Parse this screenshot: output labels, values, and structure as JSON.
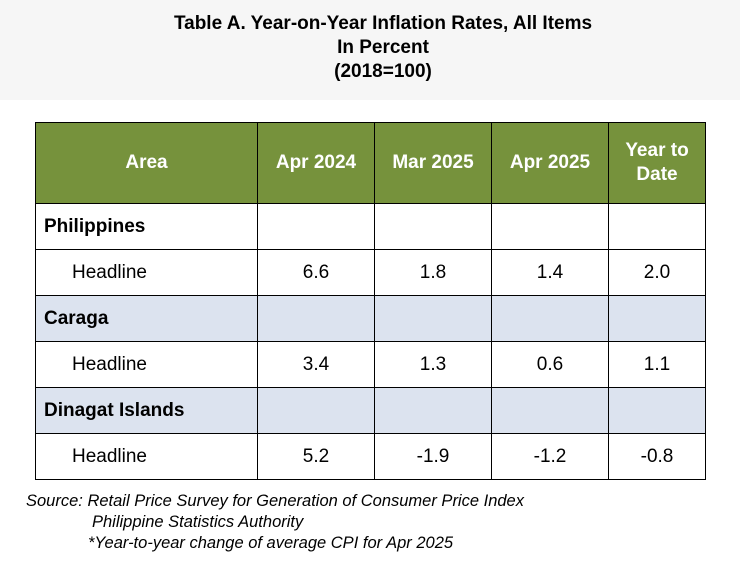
{
  "title": {
    "line1": "Table A. Year-on-Year Inflation Rates, All Items",
    "line2": "In Percent",
    "line3": "(2018=100)"
  },
  "table": {
    "headers": [
      "Area",
      "Apr 2024",
      "Mar 2025",
      "Apr 2025",
      "Year to Date"
    ],
    "rows": [
      {
        "type": "group",
        "label": "Philippines",
        "values": [
          "",
          "",
          "",
          ""
        ]
      },
      {
        "type": "item",
        "label": "Headline",
        "values": [
          "6.6",
          "1.8",
          "1.4",
          "2.0"
        ]
      },
      {
        "type": "group",
        "label": "Caraga",
        "values": [
          "",
          "",
          "",
          ""
        ]
      },
      {
        "type": "item",
        "label": "Headline",
        "values": [
          "3.4",
          "1.3",
          "0.6",
          "1.1"
        ]
      },
      {
        "type": "group",
        "label": "Dinagat Islands",
        "values": [
          "",
          "",
          "",
          ""
        ]
      },
      {
        "type": "item",
        "label": "Headline",
        "values": [
          "5.2",
          "-1.9",
          "-1.2",
          "-0.8"
        ]
      }
    ]
  },
  "source": {
    "line1": "Source: Retail Price Survey for Generation of Consumer Price Index",
    "line2": "Philippine Statistics Authority",
    "line3": "*Year-to-year change of average CPI for Apr 2025"
  },
  "colors": {
    "header_bg": "#76923c",
    "header_text": "#ffffff",
    "shaded_row": "#dce3ef"
  }
}
